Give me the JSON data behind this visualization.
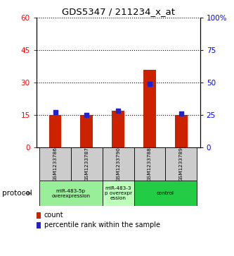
{
  "title": "GDS5347 / 211234_x_at",
  "samples": [
    "GSM1233786",
    "GSM1233787",
    "GSM1233790",
    "GSM1233788",
    "GSM1233789"
  ],
  "counts": [
    15,
    15,
    17,
    36,
    15
  ],
  "percentile_ranks": [
    27,
    25,
    28,
    49,
    26
  ],
  "ylim_left": [
    0,
    60
  ],
  "ylim_right": [
    0,
    100
  ],
  "yticks_left": [
    0,
    15,
    30,
    45,
    60
  ],
  "yticks_right": [
    0,
    25,
    50,
    75,
    100
  ],
  "ytick_labels_left": [
    "0",
    "15",
    "30",
    "45",
    "60"
  ],
  "ytick_labels_right": [
    "0",
    "25",
    "50",
    "75",
    "100%"
  ],
  "bar_color": "#cc2200",
  "marker_color": "#2222cc",
  "group_configs": [
    {
      "indices": [
        0,
        1
      ],
      "label": "miR-483-5p\noverexpression",
      "color": "#99ee99"
    },
    {
      "indices": [
        2
      ],
      "label": "miR-483-3\np overexpr\nession",
      "color": "#bbffbb"
    },
    {
      "indices": [
        3,
        4
      ],
      "label": "control",
      "color": "#22cc44"
    }
  ],
  "protocol_label": "protocol",
  "legend_count_label": "count",
  "legend_pct_label": "percentile rank within the sample",
  "background_color": "#ffffff",
  "sample_box_color": "#cccccc",
  "bar_width": 0.4
}
